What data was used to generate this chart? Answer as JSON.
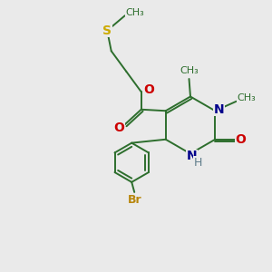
{
  "background_color": "#eaeaea",
  "bond_color": "#2d6e2d",
  "bond_width": 1.4,
  "S_color": "#ccaa00",
  "O_color": "#cc0000",
  "N_color": "#00008b",
  "Br_color": "#b8860b",
  "H_color": "#607d8b",
  "figsize": [
    3.0,
    3.0
  ],
  "dpi": 100,
  "xlim": [
    0,
    10
  ],
  "ylim": [
    0,
    10
  ]
}
